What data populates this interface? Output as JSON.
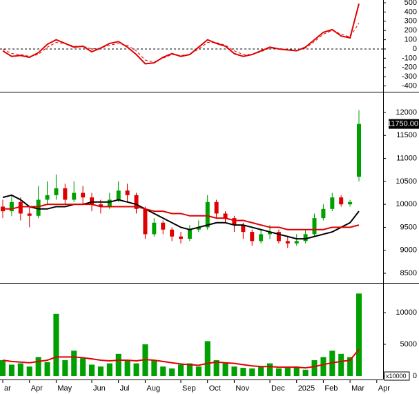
{
  "chart_data": [
    {
      "type": "line",
      "ylim": [
        -463,
        530
      ],
      "yticks": [
        500,
        400,
        300,
        200,
        100,
        0,
        -100,
        -200,
        -300,
        -400
      ],
      "reference_line": 0,
      "series": [
        {
          "color": "#e00000",
          "values": [
            -20,
            -80,
            -70,
            -90,
            -40,
            50,
            100,
            60,
            20,
            30,
            -30,
            10,
            60,
            80,
            20,
            -60,
            -160,
            -150,
            -90,
            -50,
            -80,
            -60,
            20,
            100,
            60,
            30,
            -50,
            -80,
            -60,
            -20,
            20,
            0,
            -10,
            -20,
            20,
            100,
            180,
            210,
            140,
            120,
            490,
            null,
            null
          ]
        },
        {
          "color": "#e00000",
          "dashed": true,
          "values": [
            0,
            -50,
            -60,
            -80,
            -60,
            20,
            70,
            60,
            30,
            30,
            0,
            10,
            40,
            60,
            40,
            -20,
            -120,
            -140,
            -100,
            -60,
            -70,
            -60,
            0,
            70,
            70,
            40,
            -20,
            -60,
            -60,
            -30,
            10,
            5,
            -5,
            -15,
            10,
            80,
            160,
            200,
            160,
            130,
            280,
            null,
            null
          ]
        }
      ]
    },
    {
      "type": "candlestick",
      "ylim": [
        8290,
        12435
      ],
      "yticks": [
        12000,
        11500,
        11000,
        10500,
        10000,
        9500,
        9000,
        8500
      ],
      "up_color": "#00a000",
      "down_color": "#e00000",
      "open": [
        9950,
        9850,
        10050,
        9800,
        9750,
        10100,
        10200,
        10350,
        10100,
        10250,
        10150,
        10000,
        9950,
        10100,
        10300,
        10200,
        9900,
        9350,
        9600,
        9450,
        9300,
        9250,
        9450,
        9500,
        10050,
        9800,
        9700,
        9550,
        9400,
        9200,
        9350,
        9400,
        9200,
        9150,
        9200,
        9350,
        9700,
        9900,
        10150,
        10000,
        10600,
        null,
        null
      ],
      "high": [
        10100,
        10200,
        10150,
        9950,
        10400,
        10500,
        10650,
        10450,
        10500,
        10400,
        10250,
        10100,
        10250,
        10500,
        10450,
        10250,
        9950,
        9700,
        9650,
        9500,
        9400,
        9550,
        9650,
        10200,
        10100,
        9850,
        9750,
        9600,
        9450,
        9450,
        9550,
        9450,
        9300,
        9350,
        9450,
        9800,
        10000,
        10250,
        10200,
        10100,
        12050,
        null,
        null
      ],
      "low": [
        9700,
        9750,
        9650,
        9500,
        9700,
        10000,
        10100,
        10000,
        10050,
        10000,
        9850,
        9800,
        9900,
        10050,
        10050,
        9800,
        9250,
        9300,
        9350,
        9200,
        9150,
        9200,
        9400,
        9450,
        9700,
        9600,
        9400,
        9250,
        9100,
        9150,
        9250,
        9150,
        9050,
        9100,
        9150,
        9300,
        9650,
        9850,
        9950,
        9950,
        10500,
        null,
        null
      ],
      "close": [
        9850,
        10050,
        9800,
        9750,
        10100,
        10200,
        10350,
        10100,
        10250,
        10150,
        10000,
        9950,
        10100,
        10300,
        10200,
        9900,
        9350,
        9600,
        9450,
        9300,
        9250,
        9450,
        9500,
        10050,
        9800,
        9700,
        9550,
        9400,
        9200,
        9350,
        9400,
        9200,
        9150,
        9200,
        9350,
        9700,
        9900,
        10150,
        10000,
        10050,
        11750,
        null,
        null
      ],
      "series": [
        {
          "color": "#000000",
          "values": [
            10150,
            10200,
            10100,
            9950,
            9900,
            9900,
            9950,
            9950,
            10000,
            10000,
            10050,
            10050,
            10050,
            10100,
            10050,
            10000,
            9900,
            9800,
            9700,
            9600,
            9500,
            9450,
            9500,
            9550,
            9600,
            9600,
            9550,
            9550,
            9500,
            9450,
            9400,
            9350,
            9300,
            9250,
            9250,
            9300,
            9350,
            9400,
            9500,
            9600,
            9850,
            null,
            null
          ]
        },
        {
          "color": "#e00000",
          "values": [
            9900,
            9900,
            9950,
            9950,
            9950,
            10000,
            10000,
            10000,
            10000,
            10000,
            10000,
            9950,
            9950,
            9950,
            9950,
            9950,
            9900,
            9850,
            9850,
            9800,
            9800,
            9750,
            9750,
            9750,
            9700,
            9700,
            9650,
            9650,
            9600,
            9550,
            9500,
            9500,
            9450,
            9450,
            9450,
            9450,
            9450,
            9500,
            9500,
            9500,
            9550,
            null,
            null
          ]
        }
      ],
      "last_price": {
        "value": 11750,
        "label": "11750.00"
      }
    },
    {
      "type": "bar",
      "ylim": [
        -540,
        14560
      ],
      "yticks": [
        10000,
        5000,
        0
      ],
      "unit_label": "x10000",
      "color": "#00a000",
      "categories": [
        "ar",
        null,
        null,
        "Apr",
        null,
        null,
        "May",
        null,
        null,
        null,
        "Jun",
        null,
        null,
        "Jul",
        null,
        null,
        "Aug",
        null,
        null,
        null,
        "Sep",
        null,
        null,
        "Oct",
        null,
        null,
        "Nov",
        null,
        null,
        null,
        "Dec",
        null,
        null,
        "2025",
        null,
        null,
        "Feb",
        null,
        null,
        "Mar",
        null,
        null,
        "Apr"
      ],
      "values": [
        2500,
        1800,
        2000,
        1500,
        3000,
        2200,
        9800,
        2500,
        4000,
        2800,
        1800,
        1500,
        2000,
        3500,
        2500,
        2000,
        5000,
        2500,
        1500,
        1200,
        1800,
        2000,
        1500,
        5500,
        2500,
        2000,
        1500,
        1300,
        1200,
        1500,
        2000,
        1200,
        1300,
        1500,
        1000,
        2500,
        3000,
        4000,
        3500,
        3000,
        13000,
        null,
        null
      ],
      "series": [
        {
          "color": "#e00000",
          "values": [
            2500,
            2300,
            2200,
            2100,
            2300,
            2500,
            3000,
            3000,
            3000,
            2900,
            2700,
            2500,
            2400,
            2500,
            2500,
            2400,
            2600,
            2500,
            2300,
            2100,
            1900,
            1800,
            1700,
            2000,
            2200,
            2100,
            2000,
            1800,
            1600,
            1500,
            1500,
            1400,
            1400,
            1400,
            1300,
            1500,
            1800,
            2100,
            2300,
            2500,
            4200,
            null,
            null
          ]
        }
      ]
    }
  ]
}
